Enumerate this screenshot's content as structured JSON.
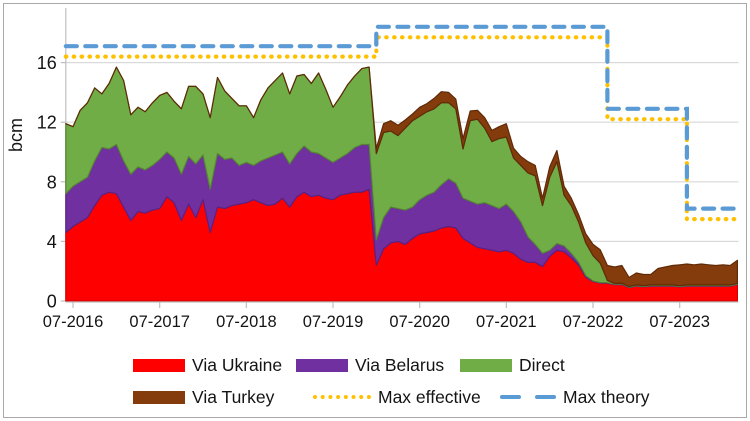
{
  "y_axis": {
    "title": "bcm",
    "ticks": [
      0,
      4,
      8,
      12,
      16
    ]
  },
  "x_axis": {
    "tick_labels": [
      "07-2016",
      "07-2017",
      "07-2018",
      "07-2019",
      "07-2020",
      "07-2021",
      "07-2022",
      "07-2023"
    ]
  },
  "legend": {
    "items": [
      {
        "id": "via-ukraine",
        "label": "Via Ukraine",
        "type": "area",
        "color": "#FF0000"
      },
      {
        "id": "via-belarus",
        "label": "Via Belarus",
        "type": "area",
        "color": "#7030A0"
      },
      {
        "id": "direct",
        "label": "Direct",
        "type": "area",
        "color": "#70AD47"
      },
      {
        "id": "via-turkey",
        "label": "Via Turkey",
        "type": "area",
        "color": "#843C0C"
      },
      {
        "id": "max-effective",
        "label": "Max effective",
        "type": "dotted-line",
        "color": "#FFC000"
      },
      {
        "id": "max-theory",
        "label": "Max theory",
        "type": "dashed-line",
        "color": "#5B9BD5"
      }
    ]
  },
  "chart_data": {
    "type": "area",
    "stacked": true,
    "unit": "bcm",
    "x_start": "2016-06",
    "x_end": "2024-03",
    "x_frequency": "monthly",
    "ylabel": "bcm",
    "ylim": [
      0,
      19.6
    ],
    "grid": true,
    "colors": {
      "grid": "#d9d9d9",
      "axis": "#bfbfbf",
      "text": "#141414"
    },
    "series": [
      {
        "name": "Via Ukraine",
        "color": "#FF0000",
        "edge": "#d40000",
        "values": [
          4.6,
          5.0,
          5.3,
          5.6,
          6.4,
          7.1,
          7.3,
          7.2,
          6.3,
          5.4,
          6.0,
          5.9,
          6.1,
          6.2,
          7.0,
          6.6,
          5.4,
          6.5,
          5.6,
          6.8,
          4.6,
          6.3,
          6.2,
          6.4,
          6.5,
          6.6,
          6.8,
          6.6,
          6.4,
          6.5,
          6.9,
          6.3,
          7.0,
          7.3,
          7.0,
          7.1,
          6.9,
          6.8,
          7.1,
          7.2,
          7.3,
          7.3,
          7.5,
          2.4,
          3.5,
          3.9,
          4.0,
          3.8,
          4.2,
          4.5,
          4.6,
          4.7,
          4.9,
          5.0,
          4.9,
          4.2,
          3.9,
          3.6,
          3.5,
          3.4,
          3.3,
          3.4,
          3.2,
          2.8,
          2.6,
          2.6,
          2.3,
          3.0,
          3.4,
          3.3,
          2.9,
          2.4,
          1.6,
          1.3,
          1.2,
          1.2,
          1.1,
          1.1,
          0.9,
          1.0,
          0.95,
          1.0,
          1.0,
          1.0,
          1.0,
          0.95,
          1.0,
          1.0,
          1.0,
          1.0,
          1.0,
          1.0,
          1.0,
          1.1
        ]
      },
      {
        "name": "Via Belarus",
        "color": "#7030A0",
        "edge": "#5b2182",
        "values": [
          2.6,
          2.7,
          2.7,
          2.7,
          3.0,
          3.2,
          2.9,
          3.3,
          3.1,
          3.1,
          3.0,
          2.9,
          3.0,
          3.3,
          3.0,
          3.0,
          3.1,
          3.2,
          3.6,
          3.0,
          2.9,
          3.6,
          3.3,
          3.2,
          2.6,
          2.7,
          2.3,
          2.8,
          3.2,
          3.3,
          3.1,
          2.9,
          2.9,
          3.1,
          3.0,
          2.8,
          2.7,
          2.5,
          2.5,
          2.7,
          3.0,
          3.2,
          3.0,
          1.7,
          2.1,
          2.4,
          2.2,
          2.3,
          2.1,
          2.3,
          2.5,
          2.6,
          2.9,
          3.2,
          3.0,
          2.7,
          2.8,
          2.9,
          3.1,
          3.0,
          2.9,
          3.1,
          2.8,
          2.5,
          1.7,
          1.2,
          0.9,
          0.4,
          0.45,
          0.4,
          0.3,
          0.2,
          0.1,
          0.05,
          0.04,
          0.03,
          0.03,
          0.03,
          0.03,
          0.03,
          0.03,
          0.03,
          0.03,
          0.03,
          0.03,
          0.03,
          0.03,
          0.03,
          0.03,
          0.03,
          0.03,
          0.03,
          0.03,
          0.03
        ]
      },
      {
        "name": "Direct",
        "color": "#70AD47",
        "edge": "#568435",
        "values": [
          4.7,
          4.0,
          4.8,
          5.0,
          4.9,
          3.6,
          4.4,
          5.2,
          5.4,
          4.0,
          4.0,
          3.9,
          4.2,
          4.3,
          4.0,
          3.8,
          4.4,
          4.7,
          5.2,
          4.1,
          4.8,
          5.1,
          4.6,
          4.0,
          4.0,
          3.8,
          3.2,
          4.1,
          4.7,
          5.0,
          5.3,
          4.7,
          5.2,
          4.8,
          4.6,
          5.4,
          4.6,
          3.7,
          4.1,
          4.6,
          4.8,
          5.1,
          5.2,
          5.8,
          5.7,
          5.1,
          4.9,
          5.5,
          5.8,
          5.6,
          5.6,
          5.6,
          5.5,
          5.1,
          5.0,
          3.3,
          5.4,
          5.7,
          5.0,
          4.3,
          4.7,
          4.5,
          3.6,
          3.8,
          4.3,
          4.6,
          3.2,
          4.9,
          5.5,
          3.4,
          3.2,
          2.7,
          2.2,
          1.7,
          1.3,
          0.15,
          0.05,
          0.05,
          0.05,
          0.05,
          0.05,
          0.05,
          0.05,
          0.05,
          0.05,
          0.05,
          0.05,
          0.05,
          0.05,
          0.05,
          0.05,
          0.05,
          0.05,
          0.05
        ]
      },
      {
        "name": "Via Turkey",
        "color": "#843C0C",
        "edge": "#5f2a07",
        "values": [
          0,
          0,
          0,
          0,
          0,
          0,
          0,
          0,
          0,
          0,
          0,
          0,
          0,
          0,
          0,
          0,
          0,
          0,
          0,
          0,
          0,
          0,
          0,
          0,
          0,
          0,
          0,
          0,
          0,
          0,
          0,
          0,
          0,
          0,
          0,
          0,
          0,
          0,
          0,
          0,
          0,
          0,
          0,
          0.35,
          0.6,
          0.7,
          0.7,
          0.55,
          0.45,
          0.6,
          0.55,
          0.7,
          0.75,
          0.7,
          0.65,
          0.7,
          0.65,
          0.6,
          0.7,
          0.75,
          0.8,
          0.9,
          0.65,
          0.6,
          0.75,
          0.7,
          0.5,
          0.7,
          0.75,
          0.6,
          0.5,
          0.5,
          0.6,
          0.75,
          0.9,
          1.0,
          1.1,
          1.2,
          0.6,
          0.8,
          0.75,
          0.7,
          1.1,
          1.2,
          1.3,
          1.4,
          1.4,
          1.35,
          1.4,
          1.35,
          1.3,
          1.35,
          1.3,
          1.55
        ]
      }
    ],
    "max_lines": [
      {
        "name": "Max effective",
        "style": "dotted",
        "color": "#FFC000",
        "steps": [
          {
            "from": "2016-06",
            "value": 16.4
          },
          {
            "from": "2020-01",
            "value": 17.7
          },
          {
            "from": "2022-09",
            "value": 12.2
          },
          {
            "from": "2023-08",
            "value": 5.5
          }
        ]
      },
      {
        "name": "Max theory",
        "style": "dashed",
        "color": "#5B9BD5",
        "steps": [
          {
            "from": "2016-06",
            "value": 17.1
          },
          {
            "from": "2020-01",
            "value": 18.4
          },
          {
            "from": "2022-09",
            "value": 12.9
          },
          {
            "from": "2023-08",
            "value": 6.2
          }
        ]
      }
    ]
  }
}
